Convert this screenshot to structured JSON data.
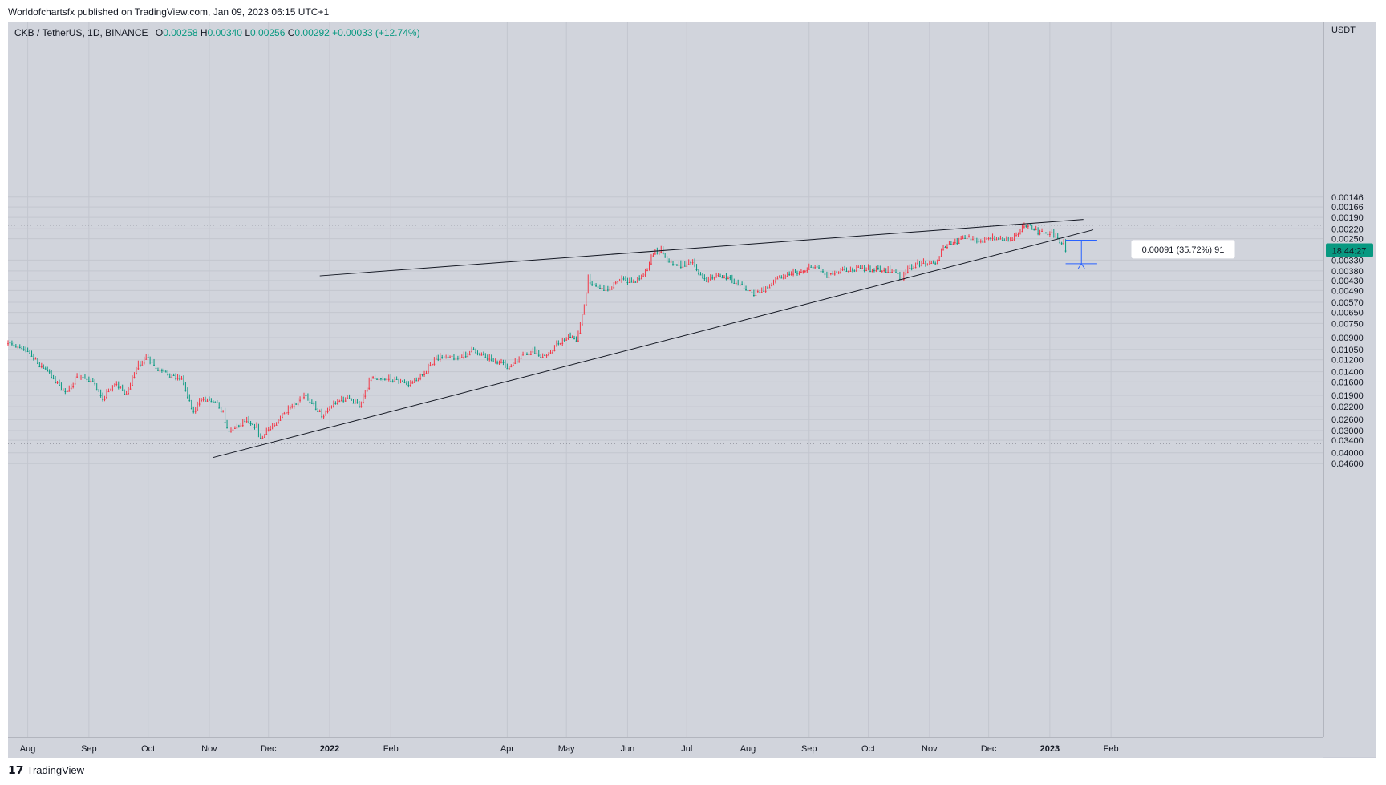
{
  "header": {
    "publisher": "Worldofchartsfx published on TradingView.com, Jan 09, 2023 06:15 UTC+1"
  },
  "legend": {
    "symbol": "CKB / TetherUS, 1D, BINANCE",
    "open_label": "O",
    "open": "0.00258",
    "high_label": "H",
    "high": "0.00340",
    "low_label": "L",
    "low": "0.00256",
    "close_label": "C",
    "close": "0.00292",
    "change": "+0.00033 (+12.74%)"
  },
  "price_axis": {
    "unit": "USDT",
    "countdown": "18:44:27"
  },
  "measure_tooltip": "0.00091 (35.72%) 91",
  "footer": {
    "logo_text": "TradingView"
  },
  "colors": {
    "up": "#089981",
    "down": "#f23645",
    "background": "#d1d4dc",
    "measure_fill": "#b3c4ee",
    "measure_line": "#2962ff",
    "trendline": "#131722"
  },
  "chart_data": {
    "type": "candlestick",
    "scale": "log",
    "y_ticks": [
      0.046,
      0.04,
      0.034,
      0.03,
      0.026,
      0.022,
      0.019,
      0.016,
      0.014,
      0.012,
      0.0105,
      0.009,
      0.0075,
      0.0065,
      0.0057,
      0.0049,
      0.0043,
      0.0038,
      0.0033,
      0.0025,
      0.0022,
      0.0019,
      0.00166,
      0.00146
    ],
    "y_tick_labels": [
      "0.04600",
      "0.04000",
      "0.03400",
      "0.03000",
      "0.02600",
      "0.02200",
      "0.01900",
      "0.01600",
      "0.01400",
      "0.01200",
      "0.01050",
      "0.00900",
      "0.00750",
      "0.00650",
      "0.00570",
      "0.00490",
      "0.00430",
      "0.00380",
      "0.00330",
      "0.00250",
      "0.00220",
      "0.00190",
      "0.00166",
      "0.00146"
    ],
    "x_ticks": [
      {
        "label": "Aug",
        "date": "2021-08-01",
        "bold": false
      },
      {
        "label": "Sep",
        "date": "2021-09-01",
        "bold": false
      },
      {
        "label": "Oct",
        "date": "2021-10-01",
        "bold": false
      },
      {
        "label": "Nov",
        "date": "2021-11-01",
        "bold": false
      },
      {
        "label": "Dec",
        "date": "2021-12-01",
        "bold": false
      },
      {
        "label": "2022",
        "date": "2022-01-01",
        "bold": true
      },
      {
        "label": "Feb",
        "date": "2022-02-01",
        "bold": false
      },
      {
        "label": "Apr",
        "date": "2022-04-01",
        "bold": false
      },
      {
        "label": "May",
        "date": "2022-05-01",
        "bold": false
      },
      {
        "label": "Jun",
        "date": "2022-06-01",
        "bold": false
      },
      {
        "label": "Jul",
        "date": "2022-07-01",
        "bold": false
      },
      {
        "label": "Aug",
        "date": "2022-08-01",
        "bold": false
      },
      {
        "label": "Sep",
        "date": "2022-09-01",
        "bold": false
      },
      {
        "label": "Oct",
        "date": "2022-10-01",
        "bold": false
      },
      {
        "label": "Nov",
        "date": "2022-11-01",
        "bold": false
      },
      {
        "label": "Dec",
        "date": "2022-12-01",
        "bold": false
      },
      {
        "label": "2023",
        "date": "2023-01-01",
        "bold": true
      },
      {
        "label": "Feb",
        "date": "2023-02-01",
        "bold": false
      }
    ],
    "close_path": [
      {
        "date": "2021-07-22",
        "close": 0.0097
      },
      {
        "date": "2021-07-30",
        "close": 0.0102
      },
      {
        "date": "2021-08-06",
        "close": 0.0125
      },
      {
        "date": "2021-08-12",
        "close": 0.0142
      },
      {
        "date": "2021-08-20",
        "close": 0.0185
      },
      {
        "date": "2021-08-26",
        "close": 0.0148
      },
      {
        "date": "2021-09-02",
        "close": 0.0155
      },
      {
        "date": "2021-09-08",
        "close": 0.0195
      },
      {
        "date": "2021-09-14",
        "close": 0.0162
      },
      {
        "date": "2021-09-20",
        "close": 0.0185
      },
      {
        "date": "2021-09-26",
        "close": 0.0128
      },
      {
        "date": "2021-09-30",
        "close": 0.0115
      },
      {
        "date": "2021-10-06",
        "close": 0.0138
      },
      {
        "date": "2021-10-12",
        "close": 0.0145
      },
      {
        "date": "2021-10-18",
        "close": 0.0152
      },
      {
        "date": "2021-10-24",
        "close": 0.0235
      },
      {
        "date": "2021-10-28",
        "close": 0.0198
      },
      {
        "date": "2021-11-04",
        "close": 0.0202
      },
      {
        "date": "2021-11-08",
        "close": 0.0235
      },
      {
        "date": "2021-11-10",
        "close": 0.0295
      },
      {
        "date": "2021-11-15",
        "close": 0.0285
      },
      {
        "date": "2021-11-20",
        "close": 0.0255
      },
      {
        "date": "2021-11-25",
        "close": 0.0285
      },
      {
        "date": "2021-11-27",
        "close": 0.0335
      },
      {
        "date": "2021-12-02",
        "close": 0.0285
      },
      {
        "date": "2021-12-08",
        "close": 0.0245
      },
      {
        "date": "2021-12-14",
        "close": 0.0215
      },
      {
        "date": "2021-12-20",
        "close": 0.0188
      },
      {
        "date": "2021-12-28",
        "close": 0.0245
      },
      {
        "date": "2022-01-04",
        "close": 0.0205
      },
      {
        "date": "2022-01-10",
        "close": 0.0196
      },
      {
        "date": "2022-01-16",
        "close": 0.0215
      },
      {
        "date": "2022-01-22",
        "close": 0.0148
      },
      {
        "date": "2022-01-28",
        "close": 0.0152
      },
      {
        "date": "2022-02-04",
        "close": 0.0155
      },
      {
        "date": "2022-02-10",
        "close": 0.0165
      },
      {
        "date": "2022-02-16",
        "close": 0.0148
      },
      {
        "date": "2022-02-24",
        "close": 0.0118
      },
      {
        "date": "2022-03-02",
        "close": 0.0112
      },
      {
        "date": "2022-03-08",
        "close": 0.0118
      },
      {
        "date": "2022-03-14",
        "close": 0.0106
      },
      {
        "date": "2022-03-20",
        "close": 0.0112
      },
      {
        "date": "2022-03-28",
        "close": 0.0125
      },
      {
        "date": "2022-04-02",
        "close": 0.0132
      },
      {
        "date": "2022-04-08",
        "close": 0.0115
      },
      {
        "date": "2022-04-14",
        "close": 0.0108
      },
      {
        "date": "2022-04-20",
        "close": 0.0115
      },
      {
        "date": "2022-04-26",
        "close": 0.0098
      },
      {
        "date": "2022-05-02",
        "close": 0.0088
      },
      {
        "date": "2022-05-06",
        "close": 0.0092
      },
      {
        "date": "2022-05-10",
        "close": 0.006
      },
      {
        "date": "2022-05-12",
        "close": 0.0042
      },
      {
        "date": "2022-05-16",
        "close": 0.0046
      },
      {
        "date": "2022-05-22",
        "close": 0.0048
      },
      {
        "date": "2022-05-28",
        "close": 0.0042
      },
      {
        "date": "2022-06-04",
        "close": 0.0044
      },
      {
        "date": "2022-06-10",
        "close": 0.0038
      },
      {
        "date": "2022-06-14",
        "close": 0.003
      },
      {
        "date": "2022-06-18",
        "close": 0.00285
      },
      {
        "date": "2022-06-22",
        "close": 0.0034
      },
      {
        "date": "2022-06-28",
        "close": 0.0035
      },
      {
        "date": "2022-07-04",
        "close": 0.0034
      },
      {
        "date": "2022-07-10",
        "close": 0.0043
      },
      {
        "date": "2022-07-16",
        "close": 0.004
      },
      {
        "date": "2022-07-22",
        "close": 0.0042
      },
      {
        "date": "2022-07-28",
        "close": 0.0045
      },
      {
        "date": "2022-08-04",
        "close": 0.0051
      },
      {
        "date": "2022-08-10",
        "close": 0.0048
      },
      {
        "date": "2022-08-16",
        "close": 0.0041
      },
      {
        "date": "2022-08-22",
        "close": 0.0039
      },
      {
        "date": "2022-08-28",
        "close": 0.0038
      },
      {
        "date": "2022-09-04",
        "close": 0.0035
      },
      {
        "date": "2022-09-10",
        "close": 0.004
      },
      {
        "date": "2022-09-14",
        "close": 0.0038
      },
      {
        "date": "2022-09-20",
        "close": 0.0037
      },
      {
        "date": "2022-09-28",
        "close": 0.0037
      },
      {
        "date": "2022-10-06",
        "close": 0.0037
      },
      {
        "date": "2022-10-14",
        "close": 0.0038
      },
      {
        "date": "2022-10-18",
        "close": 0.0042
      },
      {
        "date": "2022-10-22",
        "close": 0.0036
      },
      {
        "date": "2022-10-28",
        "close": 0.0034
      },
      {
        "date": "2022-11-04",
        "close": 0.0034
      },
      {
        "date": "2022-11-08",
        "close": 0.0028
      },
      {
        "date": "2022-11-14",
        "close": 0.0026
      },
      {
        "date": "2022-11-20",
        "close": 0.00245
      },
      {
        "date": "2022-11-28",
        "close": 0.00255
      },
      {
        "date": "2022-12-04",
        "close": 0.00245
      },
      {
        "date": "2022-12-12",
        "close": 0.00255
      },
      {
        "date": "2022-12-16",
        "close": 0.00225
      },
      {
        "date": "2022-12-20",
        "close": 0.00208
      },
      {
        "date": "2022-12-26",
        "close": 0.00228
      },
      {
        "date": "2023-01-02",
        "close": 0.00232
      },
      {
        "date": "2023-01-06",
        "close": 0.00255
      },
      {
        "date": "2023-01-08",
        "close": 0.00262
      },
      {
        "date": "2023-01-09",
        "close": 0.00292
      }
    ],
    "trendlines": [
      {
        "name": "upper",
        "start": {
          "date": "2021-11-03",
          "price": 0.0425
        },
        "end": {
          "date": "2023-01-23",
          "price": 0.00223
        }
      },
      {
        "name": "lower",
        "start": {
          "date": "2021-12-27",
          "price": 0.00405
        },
        "end": {
          "date": "2023-01-18",
          "price": 0.00195
        }
      }
    ],
    "horizontal_lines": [
      0.0354,
      0.0021
    ],
    "measure": {
      "start_date": "2023-01-09",
      "end_date": "2023-01-25",
      "low": 0.00255,
      "high": 0.00346
    },
    "last_price": 0.00292
  }
}
